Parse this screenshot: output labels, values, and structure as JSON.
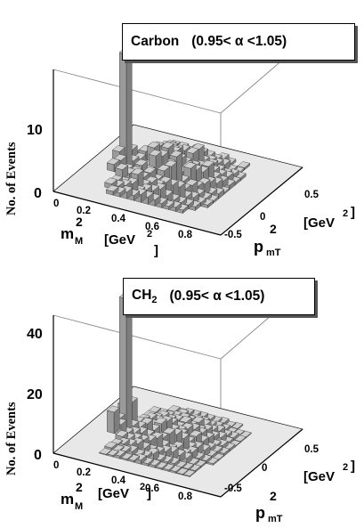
{
  "chart_data": [
    {
      "type": "3d-bar",
      "legend": {
        "target": "Carbon",
        "cut": "(0.95< α <1.05)"
      },
      "ylabel": "No. of Events",
      "zticks": [
        "0",
        "10"
      ],
      "zlim": [
        0,
        17
      ],
      "x_title": "m",
      "x_sub": "M",
      "x_sup": "2",
      "x_unit": "[GeV",
      "x_unit_sup": "2",
      "x_unit_close": "]",
      "xticks": [
        "0",
        "0.2",
        "0.4",
        "0.6",
        "0.8"
      ],
      "y_title": "p",
      "y_sub": "mT",
      "y_sup": "2",
      "y_unit": "[GeV",
      "y_unit_sup": "2",
      "y_unit_close": "]",
      "yticks": [
        "-0.5",
        "0",
        "0.5"
      ],
      "peak": {
        "m2": 0.14,
        "pt2": 0.0,
        "count": 16
      },
      "continuum_level": 4
    },
    {
      "type": "3d-bar",
      "legend": {
        "target": "CH",
        "target_sub": "2",
        "cut": "(0.95< α <1.05)"
      },
      "ylabel": "No. of Events",
      "zticks": [
        "0",
        "20",
        "40"
      ],
      "zlim": [
        0,
        46
      ],
      "x_title": "m",
      "x_sub": "M",
      "x_sup": "2",
      "x_unit": "[GeV",
      "x_unit_sup": "2",
      "x_unit_close": "]",
      "xticks": [
        "0",
        "0.2",
        "0.4",
        "0.6",
        "0.8"
      ],
      "y_title": "p",
      "y_sub": "mT",
      "y_sup": "2",
      "y_unit": "[GeV",
      "y_unit_sup": "2",
      "y_unit_close": "]",
      "yticks": [
        "-0.5",
        "0",
        "0.5"
      ],
      "peak": {
        "m2": 0.14,
        "pt2": 0.0,
        "count": 44
      },
      "continuum_level": 5
    }
  ]
}
